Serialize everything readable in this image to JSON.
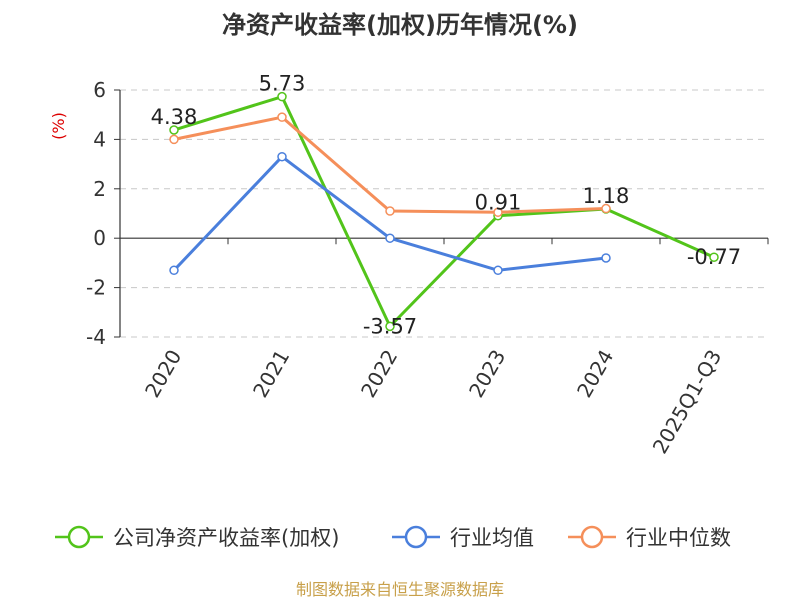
{
  "chart_data": {
    "type": "line",
    "title": "净资产收益率(加权)历年情况(%)",
    "ylabel": "(%)",
    "xlabel": "",
    "categories": [
      "2020",
      "2021",
      "2022",
      "2023",
      "2024",
      "2025Q1-Q3"
    ],
    "ylim": [
      -4,
      6
    ],
    "yticks": [
      6,
      4,
      2,
      0,
      -2,
      -4
    ],
    "grid": true,
    "legend_position": "bottom",
    "series": [
      {
        "name": "公司净资产收益率(加权)",
        "color": "#52c41a",
        "values": [
          4.38,
          5.73,
          -3.57,
          0.91,
          1.18,
          -0.77
        ],
        "labels": [
          "4.38",
          "5.73",
          "-3.57",
          "0.91",
          "1.18",
          "-0.77"
        ]
      },
      {
        "name": "行业均值",
        "color": "#4a7fdc",
        "values": [
          -1.3,
          3.3,
          0.0,
          -1.3,
          -0.8,
          null
        ]
      },
      {
        "name": "行业中位数",
        "color": "#f58f5a",
        "values": [
          4.0,
          4.9,
          1.1,
          1.05,
          1.2,
          null
        ]
      }
    ],
    "source": "制图数据来自恒生聚源数据库"
  }
}
